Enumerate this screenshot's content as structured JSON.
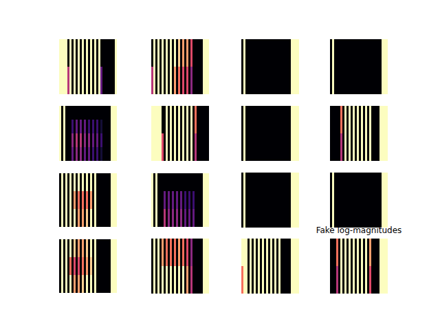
{
  "chart_data": {
    "type": "heatmap",
    "color": "magma",
    "tick_labels": false,
    "panels": [
      {
        "cells": [
          [
            1,
            1,
            1,
            1,
            0,
            1,
            0,
            1,
            0,
            1,
            0,
            1,
            0,
            1,
            0,
            1,
            0,
            1,
            0,
            1,
            0,
            0,
            0,
            0,
            0,
            0,
            0,
            1
          ],
          [
            1,
            1,
            1,
            1,
            0.5,
            1,
            0,
            1,
            0,
            1,
            0,
            1,
            0,
            1,
            0,
            1,
            0,
            1,
            0,
            1,
            0.3,
            0,
            0,
            0,
            0,
            0,
            0,
            1
          ]
        ]
      },
      {
        "cells": [
          [
            0,
            1,
            0,
            1,
            0,
            1,
            0,
            1,
            0,
            1,
            0,
            1,
            0,
            0.9,
            0,
            0.8,
            0,
            0.8,
            0,
            0.6,
            0,
            0,
            0,
            0,
            0,
            1,
            1,
            1
          ],
          [
            0.5,
            1,
            0,
            1,
            0,
            1,
            0,
            1,
            0,
            1,
            0,
            0.8,
            0,
            0.7,
            0,
            0.6,
            0,
            0.6,
            0,
            0.4,
            0,
            0,
            0,
            0,
            0,
            1,
            1,
            1
          ]
        ]
      },
      {
        "cells": [
          [
            0,
            1,
            0,
            0,
            0,
            0,
            0,
            0,
            0,
            0,
            0,
            0,
            0,
            0,
            0,
            0,
            0,
            0,
            0,
            0,
            0,
            0,
            0,
            0,
            1,
            1,
            1,
            1
          ]
        ]
      },
      {
        "cells": [
          [
            0,
            1,
            0,
            0,
            0,
            0,
            0,
            0,
            0,
            0,
            0,
            0,
            0,
            0,
            0,
            0,
            0,
            0,
            0,
            0,
            0,
            0,
            0,
            0,
            0,
            1,
            1,
            1
          ]
        ]
      },
      {
        "cells": [
          [
            1,
            0,
            1,
            0,
            0,
            0,
            0,
            0,
            0,
            0,
            0,
            0,
            0,
            0,
            0,
            0,
            0,
            0,
            0,
            0,
            0,
            0,
            0,
            0,
            0,
            1,
            1,
            1
          ],
          [
            1,
            0,
            1,
            0,
            0,
            0,
            0.2,
            0,
            0.3,
            0,
            0.3,
            0,
            0.3,
            0,
            0.2,
            0,
            0.2,
            0,
            0.2,
            0,
            0.1,
            0,
            0,
            0,
            0,
            1,
            1,
            1
          ],
          [
            1,
            0,
            1,
            0,
            0,
            0,
            0.4,
            0,
            0.5,
            0,
            0.5,
            0,
            0.4,
            0,
            0.4,
            0,
            0.3,
            0,
            0.3,
            0,
            0.2,
            0,
            0,
            0,
            0,
            1,
            1,
            1
          ],
          [
            1,
            0,
            1,
            0,
            0,
            0,
            0.3,
            0,
            0.4,
            0,
            0.4,
            0,
            0.3,
            0,
            0.3,
            0,
            0.2,
            0,
            0.2,
            0,
            0.1,
            0,
            0,
            0,
            0,
            1,
            1,
            1
          ]
        ]
      },
      {
        "cells": [
          [
            1,
            1,
            1,
            1,
            1,
            0,
            0,
            1,
            0,
            1,
            0,
            1,
            0,
            1,
            0,
            1,
            0,
            1,
            0,
            1,
            0,
            0.7,
            0,
            0,
            0,
            0,
            0,
            0
          ],
          [
            1,
            1,
            1,
            1,
            1,
            0.6,
            0,
            1,
            0,
            1,
            0,
            1,
            0,
            1,
            0,
            1,
            0,
            1,
            0,
            1,
            0,
            0.5,
            0,
            0,
            0,
            0,
            0,
            0
          ]
        ]
      },
      {
        "cells": [
          [
            0,
            1,
            0,
            0,
            0,
            0,
            0,
            0,
            0,
            0,
            0,
            0,
            0,
            0,
            0,
            0,
            0,
            0,
            0,
            0,
            0,
            0,
            0,
            0,
            1,
            1,
            1,
            1
          ]
        ]
      },
      {
        "cells": [
          [
            0,
            0,
            0,
            0,
            0,
            0.7,
            0,
            1,
            0,
            1,
            0,
            1,
            0,
            1,
            0,
            1,
            0,
            1,
            0,
            1,
            0,
            0,
            0,
            0,
            1,
            1,
            1,
            1
          ],
          [
            0,
            0,
            0,
            0,
            0,
            0.5,
            0,
            1,
            0,
            1,
            0,
            1,
            0,
            1,
            0,
            1,
            0,
            1,
            0,
            1,
            0,
            0,
            0,
            0,
            1,
            1,
            1,
            1
          ]
        ]
      },
      {
        "cells": [
          [
            0,
            1,
            0,
            1,
            0,
            1,
            0,
            1,
            0,
            1,
            0,
            1,
            0,
            1,
            0,
            1,
            0,
            1,
            0,
            0,
            0,
            0,
            0,
            0,
            0,
            1,
            1,
            1
          ],
          [
            0,
            1,
            0,
            1,
            0,
            1,
            0,
            0.8,
            0,
            0.7,
            0,
            0.7,
            0,
            0.7,
            0,
            0.8,
            0,
            1,
            0,
            0,
            0,
            0,
            0,
            0,
            0,
            1,
            1,
            1
          ],
          [
            0,
            1,
            0,
            1,
            0,
            1,
            0,
            1,
            0,
            0.8,
            0,
            0.8,
            0,
            0.9,
            0,
            1,
            0,
            1,
            0,
            0,
            0,
            0,
            0,
            0,
            0,
            1,
            1,
            1
          ]
        ]
      },
      {
        "cells": [
          [
            1,
            0,
            1,
            0,
            0,
            0,
            0,
            0,
            0,
            0,
            0,
            0,
            0,
            0,
            0,
            0,
            0,
            0,
            0,
            0,
            0,
            0,
            0,
            0,
            0,
            1,
            1,
            1
          ],
          [
            1,
            0,
            1,
            0,
            0,
            0,
            0.3,
            0,
            0.3,
            0,
            0.3,
            0,
            0.3,
            0,
            0.3,
            0,
            0.2,
            0,
            0.2,
            0,
            0.2,
            0,
            0,
            0,
            0,
            1,
            1,
            1
          ],
          [
            1,
            0,
            1,
            0,
            0,
            0,
            0.5,
            0,
            0.4,
            0,
            0.4,
            0,
            0.4,
            0,
            0.4,
            0,
            0.3,
            0,
            0.3,
            0,
            0.3,
            0,
            0,
            0,
            0,
            1,
            1,
            1
          ]
        ]
      },
      {
        "cells": [
          [
            0,
            1,
            0,
            0,
            0,
            0,
            0,
            0,
            0,
            0,
            0,
            0,
            0,
            0,
            0,
            0,
            0,
            0,
            0,
            0,
            0,
            0,
            0,
            0,
            1,
            1,
            1,
            1
          ]
        ]
      },
      {
        "cells": [
          [
            0,
            1,
            0,
            0,
            0,
            0,
            0,
            0,
            0,
            0,
            0,
            0,
            0,
            0,
            0,
            0,
            0,
            0,
            0,
            0,
            0,
            0,
            0,
            0,
            0,
            1,
            1,
            1
          ]
        ]
      },
      {
        "cells": [
          [
            0,
            1,
            0,
            1,
            0,
            1,
            0,
            0.9,
            0,
            0.8,
            0,
            0.8,
            0,
            0.9,
            0,
            1,
            0,
            1,
            0,
            0,
            0,
            0,
            0,
            0,
            0,
            1,
            1,
            1
          ],
          [
            0,
            1,
            0,
            1,
            0,
            0.7,
            0,
            0.6,
            0,
            0.6,
            0,
            0.7,
            0,
            0.8,
            0,
            0.9,
            0,
            1,
            0,
            0,
            0,
            0,
            0,
            0,
            0,
            1,
            1,
            1
          ],
          [
            0,
            1,
            0,
            1,
            0,
            1,
            0,
            0.8,
            0,
            0.8,
            0,
            0.9,
            0,
            1,
            0,
            1,
            0,
            1,
            0,
            0,
            0,
            0,
            0,
            0,
            0,
            1,
            1,
            1
          ]
        ]
      },
      {
        "cells": [
          [
            0,
            1,
            0,
            1,
            0,
            0.8,
            0,
            0.7,
            0,
            0.7,
            0,
            0.7,
            0,
            0.8,
            0,
            0.7,
            0,
            0.6,
            0,
            0.4,
            0,
            0,
            0,
            0,
            0,
            1,
            1,
            1
          ],
          [
            0,
            1,
            0,
            1,
            0,
            1,
            0,
            1,
            0,
            1,
            0,
            1,
            0,
            1,
            0,
            1,
            0,
            0.8,
            0,
            0.5,
            0,
            0,
            0,
            0,
            0,
            1,
            1,
            1
          ]
        ]
      },
      {
        "cells": [
          [
            1,
            1,
            1,
            0,
            1,
            0,
            1,
            0,
            1,
            0,
            1,
            0,
            1,
            0,
            1,
            0,
            1,
            0,
            1,
            0,
            0,
            0,
            0,
            0,
            1,
            1,
            1,
            1
          ],
          [
            0.7,
            1,
            1,
            0,
            1,
            0,
            1,
            0,
            1,
            0,
            1,
            0,
            1,
            0,
            1,
            0,
            1,
            0,
            1,
            0,
            0,
            0,
            0,
            0,
            1,
            1,
            1,
            1
          ]
        ]
      },
      {
        "title": "Fake log-magnitudes",
        "cells": [
          [
            0,
            0,
            0,
            0.7,
            0,
            1,
            0,
            1,
            0,
            1,
            0,
            1,
            0,
            1,
            0,
            1,
            0,
            1,
            0,
            0.8,
            0,
            0,
            0,
            0,
            1,
            1,
            1,
            1
          ],
          [
            0,
            0,
            0,
            0.5,
            0,
            1,
            0,
            1,
            0,
            1,
            0,
            1,
            0,
            1,
            0,
            1,
            0,
            1,
            0,
            0.6,
            0,
            0,
            0,
            0,
            1,
            1,
            1,
            1
          ]
        ]
      }
    ]
  }
}
